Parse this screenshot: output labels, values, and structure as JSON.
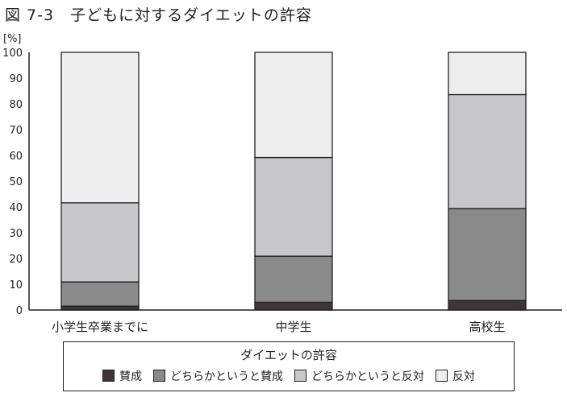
{
  "chart_data": {
    "type": "bar",
    "stacked": true,
    "title": "図 7-3　子どもに対するダイエットの許容",
    "ylabel": "[%]",
    "xlabel": "",
    "ylim": [
      0,
      100
    ],
    "yticks": [
      0,
      10,
      20,
      30,
      40,
      50,
      60,
      70,
      80,
      90,
      100
    ],
    "categories": [
      "小学生卒業までに",
      "中学生",
      "高校生"
    ],
    "legend_title": "ダイエットの許容",
    "legend_placement": "bottom",
    "series": [
      {
        "name": "賛成",
        "color": "#3d3536",
        "values": [
          1.5,
          3.0,
          3.7
        ]
      },
      {
        "name": "どちらかというと賛成",
        "color": "#8a8a8a",
        "values": [
          9.4,
          17.9,
          35.7
        ]
      },
      {
        "name": "どちらかというと反対",
        "color": "#c8c8ca",
        "values": [
          30.7,
          38.3,
          44.2
        ]
      },
      {
        "name": "反対",
        "color": "#eeeeee",
        "values": [
          58.4,
          40.8,
          16.4
        ]
      }
    ]
  }
}
